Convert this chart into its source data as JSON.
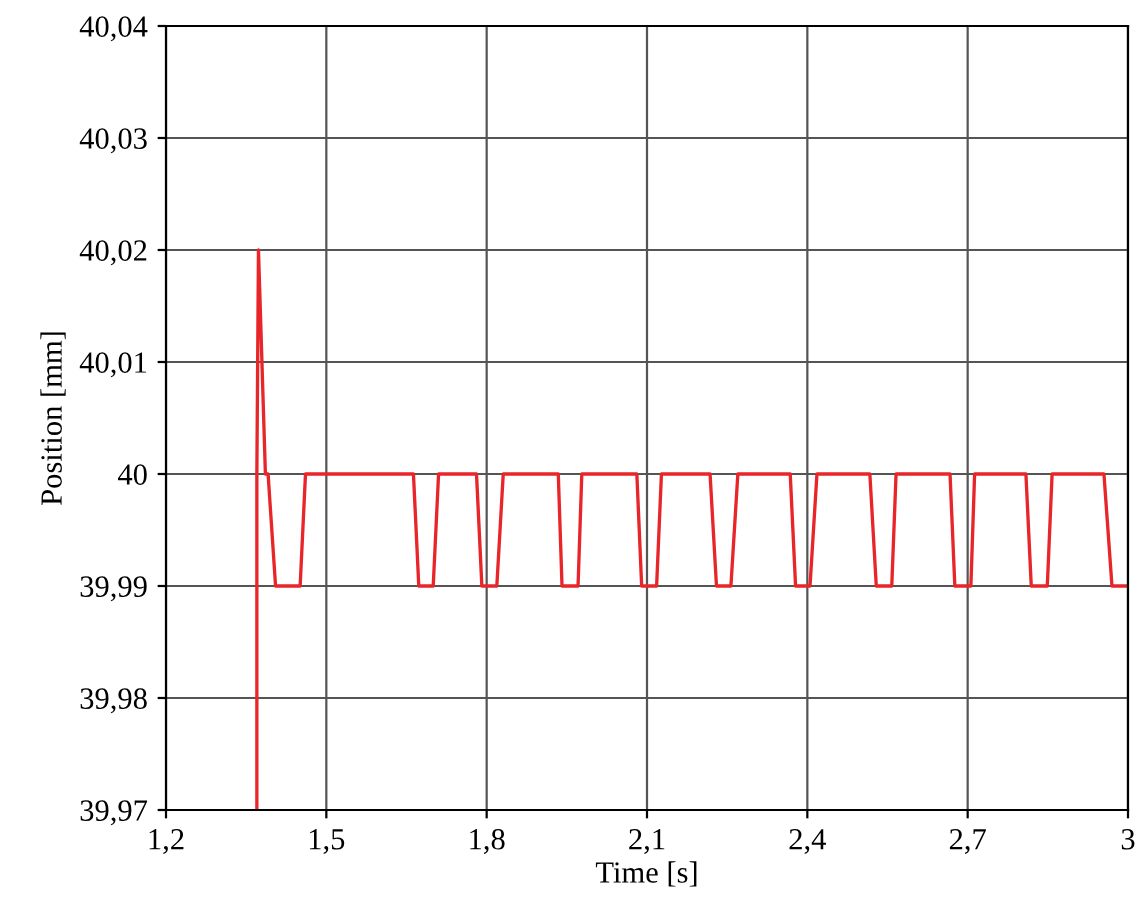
{
  "chart_data": {
    "type": "line",
    "xlabel": "Time [s]",
    "ylabel": "Position [mm]",
    "x": [
      1.37,
      1.37,
      1.373,
      1.386,
      1.391,
      1.405,
      1.451,
      1.461,
      1.663,
      1.673,
      1.7,
      1.71,
      1.781,
      1.791,
      1.819,
      1.831,
      1.934,
      1.941,
      1.971,
      1.978,
      2.081,
      2.09,
      2.118,
      2.127,
      2.218,
      2.23,
      2.257,
      2.27,
      2.368,
      2.378,
      2.405,
      2.418,
      2.517,
      2.529,
      2.558,
      2.566,
      2.667,
      2.676,
      2.706,
      2.713,
      2.809,
      2.819,
      2.849,
      2.858,
      2.955,
      2.97,
      3.0
    ],
    "series": [
      {
        "color": "#e8262a",
        "values": [
          39.97,
          40.0,
          40.02,
          40.0,
          40.0,
          39.99,
          39.99,
          40.0,
          40.0,
          39.99,
          39.99,
          40.0,
          40.0,
          39.99,
          39.99,
          40.0,
          40.0,
          39.99,
          39.99,
          40.0,
          40.0,
          39.99,
          39.99,
          40.0,
          40.0,
          39.99,
          39.99,
          40.0,
          40.0,
          39.99,
          39.99,
          40.0,
          40.0,
          39.99,
          39.99,
          40.0,
          40.0,
          39.99,
          39.99,
          40.0,
          40.0,
          39.99,
          39.99,
          40.0,
          40.0,
          39.99,
          39.99
        ]
      }
    ],
    "xlim": [
      1.2,
      3.0
    ],
    "xticks": [
      {
        "value": 1.2,
        "label": "1,2"
      },
      {
        "value": 1.5,
        "label": "1,5"
      },
      {
        "value": 1.8,
        "label": "1,8"
      },
      {
        "value": 2.1,
        "label": "2,1"
      },
      {
        "value": 2.4,
        "label": "2,4"
      },
      {
        "value": 2.7,
        "label": "2,7"
      },
      {
        "value": 3.0,
        "label": "3"
      }
    ],
    "ylim": [
      39.97,
      40.04
    ],
    "yticks": [
      {
        "value": 39.97,
        "label": "39,97"
      },
      {
        "value": 39.98,
        "label": "39,98"
      },
      {
        "value": 39.99,
        "label": "39,99"
      },
      {
        "value": 40.0,
        "label": "40"
      },
      {
        "value": 40.01,
        "label": "40,01"
      },
      {
        "value": 40.02,
        "label": "40,02"
      },
      {
        "value": 40.03,
        "label": "40,03"
      },
      {
        "value": 40.04,
        "label": "40,04"
      }
    ],
    "grid": true,
    "legend": false
  }
}
